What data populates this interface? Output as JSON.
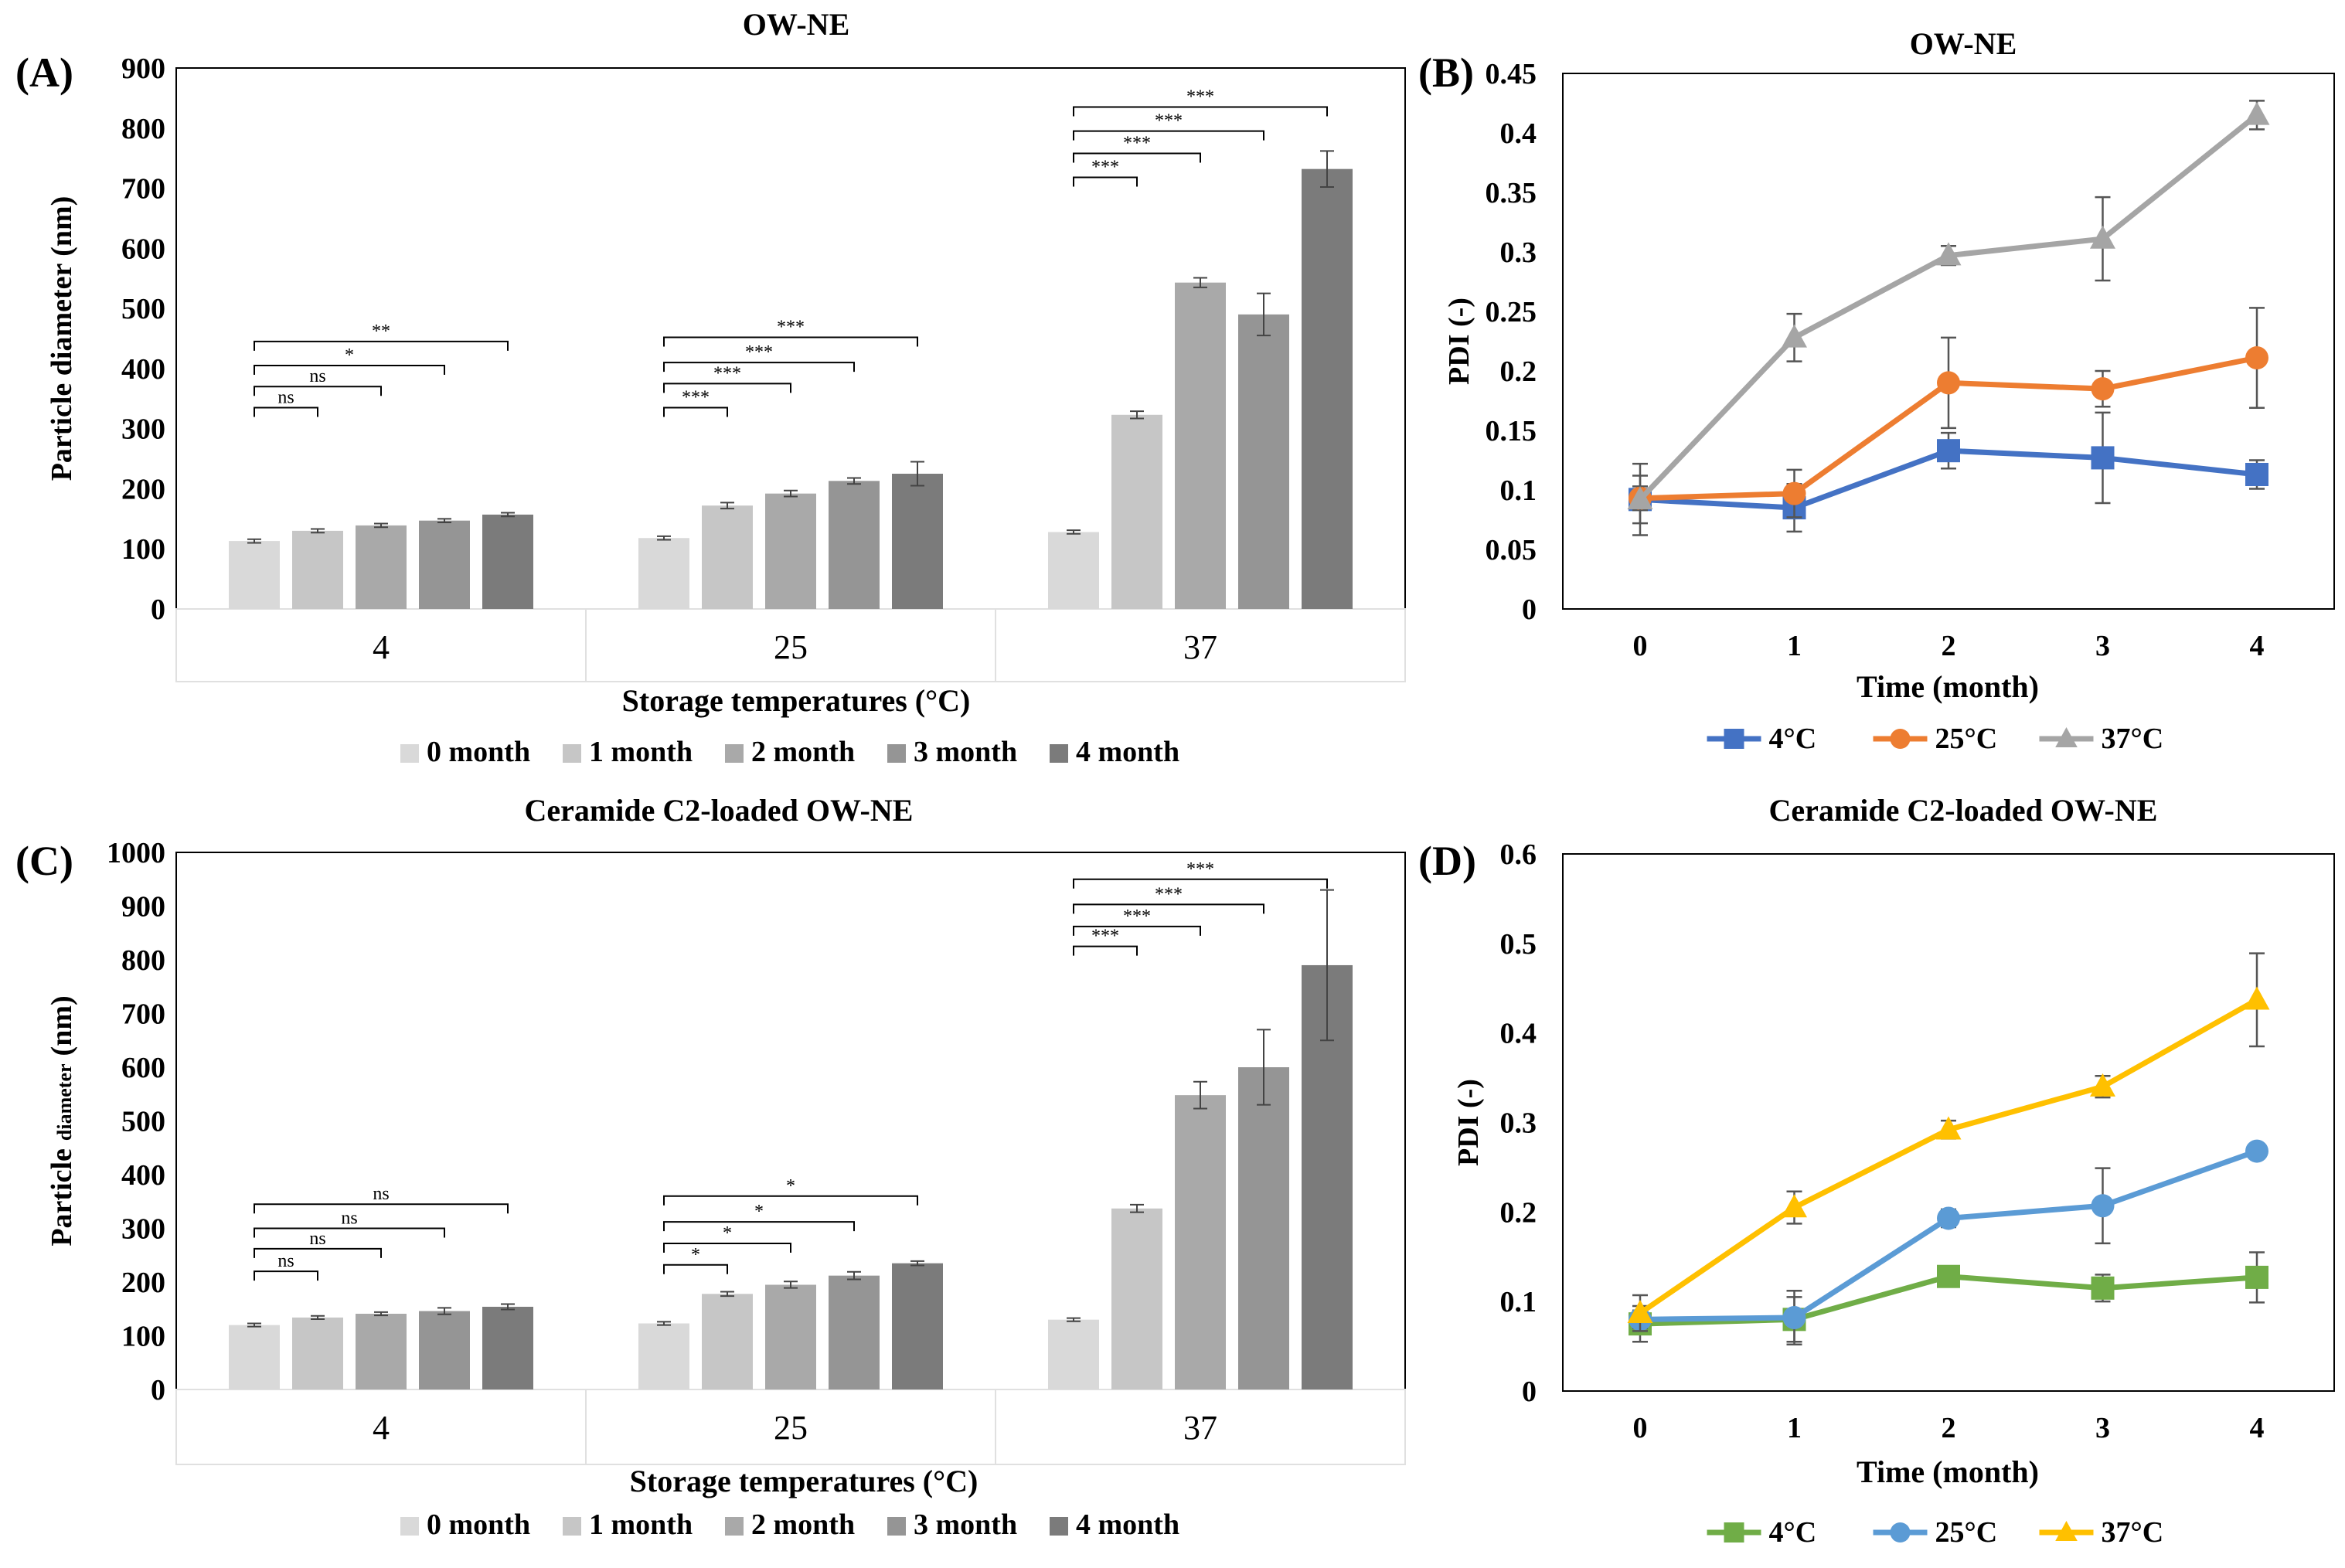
{
  "colors": {
    "bar_shades": [
      "#d9d9d9",
      "#c6c6c6",
      "#a9a9a9",
      "#959595",
      "#7b7b7b"
    ],
    "blue": "#4472c4",
    "orange": "#ed7d31",
    "gray": "#a5a5a5",
    "green": "#70ad47",
    "light_blue": "#5b9bd5",
    "yellow": "#ffc000"
  },
  "chart_data": [
    {
      "id": "A",
      "panel_label": "(A)",
      "type": "bar",
      "title": "OW-NE",
      "ylabel": "Particle diameter (nm)",
      "xlabel": "Storage temperatures (°C)",
      "ylim": [
        0,
        900
      ],
      "ystep": 100,
      "yticks": [
        "0",
        "100",
        "200",
        "300",
        "400",
        "500",
        "600",
        "700",
        "800",
        "900"
      ],
      "categories": [
        "4",
        "25",
        "37"
      ],
      "series": [
        {
          "name": "0 month",
          "values": [
            113,
            118,
            128
          ],
          "errors": [
            3,
            3,
            3
          ]
        },
        {
          "name": "1 month",
          "values": [
            130,
            172,
            323
          ],
          "errors": [
            3,
            5,
            6
          ]
        },
        {
          "name": "2 month",
          "values": [
            139,
            192,
            543
          ],
          "errors": [
            3,
            5,
            8
          ]
        },
        {
          "name": "3 month",
          "values": [
            147,
            213,
            490
          ],
          "errors": [
            3,
            5,
            35
          ]
        },
        {
          "name": "4 month",
          "values": [
            157,
            225,
            732
          ],
          "errors": [
            3,
            20,
            30
          ]
        }
      ],
      "significance": [
        {
          "category": 0,
          "from": 0,
          "to": 1,
          "label": "ns",
          "y": 335
        },
        {
          "category": 0,
          "from": 0,
          "to": 2,
          "label": "ns",
          "y": 370
        },
        {
          "category": 0,
          "from": 0,
          "to": 3,
          "label": "*",
          "y": 405
        },
        {
          "category": 0,
          "from": 0,
          "to": 4,
          "label": "**",
          "y": 445
        },
        {
          "category": 1,
          "from": 0,
          "to": 1,
          "label": "***",
          "y": 335
        },
        {
          "category": 1,
          "from": 0,
          "to": 2,
          "label": "***",
          "y": 375
        },
        {
          "category": 1,
          "from": 0,
          "to": 3,
          "label": "***",
          "y": 410
        },
        {
          "category": 1,
          "from": 0,
          "to": 4,
          "label": "***",
          "y": 452
        },
        {
          "category": 2,
          "from": 0,
          "to": 1,
          "label": "***",
          "y": 718
        },
        {
          "category": 2,
          "from": 0,
          "to": 2,
          "label": "***",
          "y": 758
        },
        {
          "category": 2,
          "from": 0,
          "to": 3,
          "label": "***",
          "y": 795
        },
        {
          "category": 2,
          "from": 0,
          "to": 4,
          "label": "***",
          "y": 835
        }
      ]
    },
    {
      "id": "B",
      "panel_label": "(B)",
      "type": "line",
      "title": "OW-NE",
      "ylabel": "PDI (-)",
      "xlabel": "Time (month)",
      "ylim": [
        0,
        0.45
      ],
      "ystep": 0.05,
      "yticks": [
        "0",
        "0.05",
        "0.1",
        "0.15",
        "0.2",
        "0.25",
        "0.3",
        "0.35",
        "0.4",
        "0.45"
      ],
      "x": [
        "0",
        "1",
        "2",
        "3",
        "4"
      ],
      "series": [
        {
          "name": "4°C",
          "marker": "square",
          "color": "#4472c4",
          "values": [
            0.092,
            0.085,
            0.133,
            0.127,
            0.113
          ],
          "errors": [
            0.02,
            0.02,
            0.015,
            0.038,
            0.012
          ]
        },
        {
          "name": "25°C",
          "marker": "circle",
          "color": "#ed7d31",
          "values": [
            0.093,
            0.097,
            0.19,
            0.185,
            0.211
          ],
          "errors": [
            0.01,
            0.02,
            0.038,
            0.015,
            0.042
          ]
        },
        {
          "name": "37°C",
          "marker": "triangle",
          "color": "#a5a5a5",
          "values": [
            0.092,
            0.228,
            0.297,
            0.311,
            0.415
          ],
          "errors": [
            0.03,
            0.02,
            0.008,
            0.035,
            0.012
          ]
        }
      ]
    },
    {
      "id": "C",
      "panel_label": "(C)",
      "type": "bar",
      "title": "Ceramide C2-loaded OW-NE",
      "ylabel_main": "Particle",
      "ylabel_small": "diameter",
      "ylabel_unit": "(nm)",
      "xlabel": "Storage temperatures (°C)",
      "ylim": [
        0,
        1000
      ],
      "ystep": 100,
      "yticks": [
        "0",
        "100",
        "200",
        "300",
        "400",
        "500",
        "600",
        "700",
        "800",
        "900",
        "1000"
      ],
      "categories": [
        "4",
        "25",
        "37"
      ],
      "series": [
        {
          "name": "0 month",
          "values": [
            120,
            123,
            130
          ],
          "errors": [
            3,
            3,
            3
          ]
        },
        {
          "name": "1 month",
          "values": [
            134,
            178,
            337
          ],
          "errors": [
            3,
            4,
            7
          ]
        },
        {
          "name": "2 month",
          "values": [
            141,
            195,
            548
          ],
          "errors": [
            3,
            6,
            25
          ]
        },
        {
          "name": "3 month",
          "values": [
            146,
            212,
            600
          ],
          "errors": [
            6,
            7,
            70
          ]
        },
        {
          "name": "4 month",
          "values": [
            154,
            235,
            790
          ],
          "errors": [
            5,
            4,
            140
          ]
        }
      ],
      "significance": [
        {
          "category": 0,
          "from": 0,
          "to": 1,
          "label": "ns",
          "y": 220
        },
        {
          "category": 0,
          "from": 0,
          "to": 2,
          "label": "ns",
          "y": 262
        },
        {
          "category": 0,
          "from": 0,
          "to": 3,
          "label": "ns",
          "y": 300
        },
        {
          "category": 0,
          "from": 0,
          "to": 4,
          "label": "ns",
          "y": 345
        },
        {
          "category": 1,
          "from": 0,
          "to": 1,
          "label": "*",
          "y": 232
        },
        {
          "category": 1,
          "from": 0,
          "to": 2,
          "label": "*",
          "y": 272
        },
        {
          "category": 1,
          "from": 0,
          "to": 3,
          "label": "*",
          "y": 312
        },
        {
          "category": 1,
          "from": 0,
          "to": 4,
          "label": "*",
          "y": 360
        },
        {
          "category": 2,
          "from": 0,
          "to": 1,
          "label": "***",
          "y": 825
        },
        {
          "category": 2,
          "from": 0,
          "to": 2,
          "label": "***",
          "y": 862
        },
        {
          "category": 2,
          "from": 0,
          "to": 3,
          "label": "***",
          "y": 903
        },
        {
          "category": 2,
          "from": 0,
          "to": 4,
          "label": "***",
          "y": 950
        }
      ]
    },
    {
      "id": "D",
      "panel_label": "(D)",
      "type": "line",
      "title": "Ceramide C2-loaded OW-NE",
      "ylabel": "PDI (-)",
      "xlabel": "Time (month)",
      "ylim": [
        0,
        0.6
      ],
      "ystep": 0.1,
      "yticks": [
        "0",
        "0.1",
        "0.2",
        "0.3",
        "0.4",
        "0.5",
        "0.6"
      ],
      "x": [
        "0",
        "1",
        "2",
        "3",
        "4"
      ],
      "series": [
        {
          "name": "4°C",
          "marker": "square",
          "color": "#70ad47",
          "values": [
            0.075,
            0.08,
            0.128,
            0.115,
            0.127
          ],
          "errors": [
            0.02,
            0.025,
            0.01,
            0.015,
            0.028
          ]
        },
        {
          "name": "25°C",
          "marker": "circle",
          "color": "#5b9bd5",
          "values": [
            0.08,
            0.082,
            0.193,
            0.207,
            0.268
          ],
          "errors": [
            0.01,
            0.03,
            0.01,
            0.042,
            0.005
          ]
        },
        {
          "name": "37°C",
          "marker": "triangle",
          "color": "#ffc000",
          "values": [
            0.087,
            0.205,
            0.292,
            0.34,
            0.437
          ],
          "errors": [
            0.02,
            0.018,
            0.01,
            0.012,
            0.052
          ]
        }
      ]
    }
  ]
}
